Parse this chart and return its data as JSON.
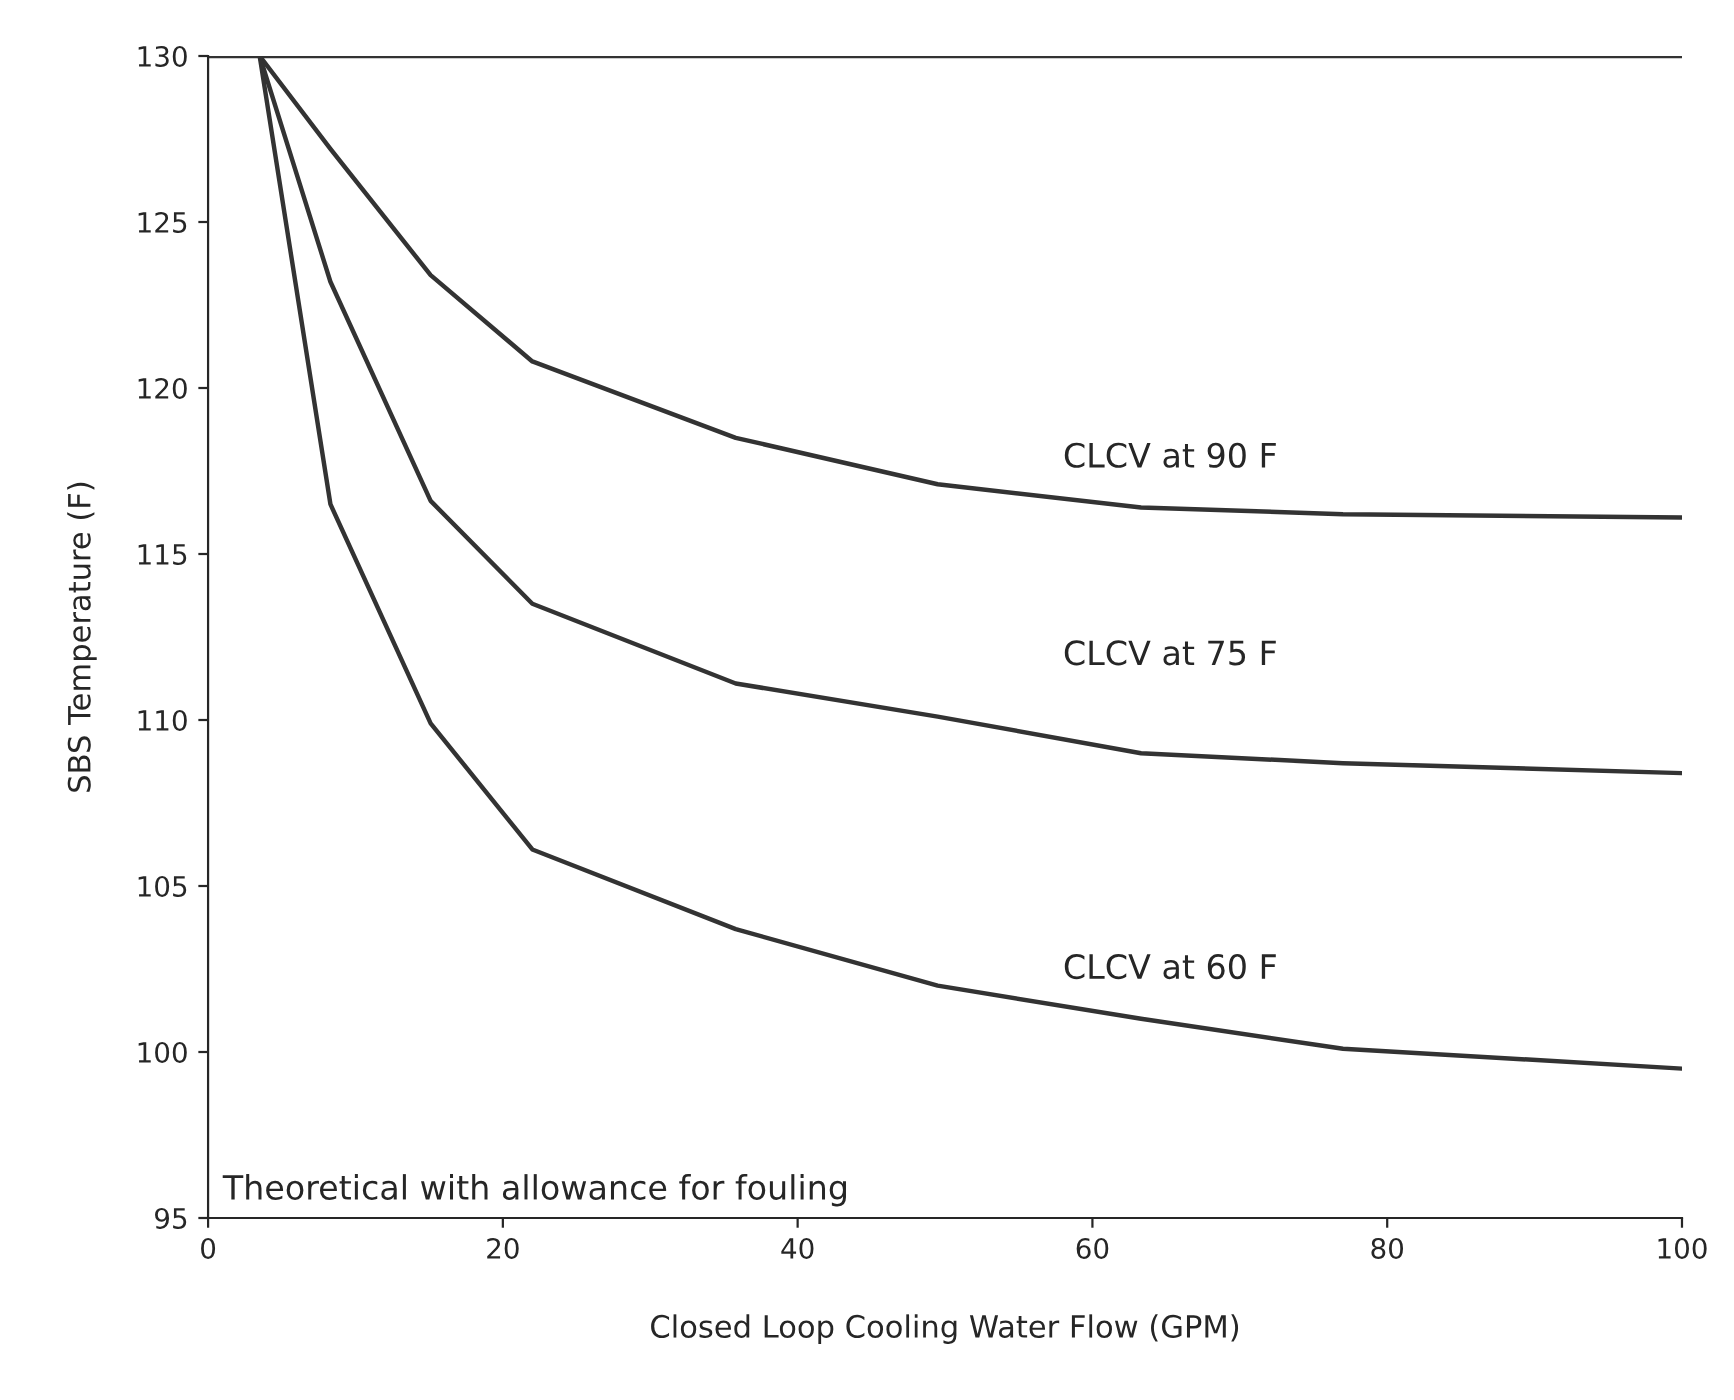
{
  "chart_data": {
    "type": "line",
    "xlabel": "Closed Loop Cooling Water Flow (GPM)",
    "ylabel": "SBS Temperature (F)",
    "xlim": [
      0,
      100
    ],
    "xticks": [
      0,
      20,
      40,
      60,
      80,
      100
    ],
    "ylim": [
      95,
      130
    ],
    "yticks": [
      95,
      100,
      105,
      110,
      115,
      120,
      125,
      130
    ],
    "grid": false,
    "marker": "none",
    "line_style": "solid",
    "series": [
      {
        "color": "#333333",
        "x": [
          0,
          100
        ],
        "values": [
          130,
          130
        ]
      },
      {
        "color": "#333333",
        "x": [
          3.5,
          8.3,
          15.1,
          22,
          35.8,
          49.5,
          63.3,
          77,
          100
        ],
        "values": [
          130,
          127.2,
          123.4,
          120.8,
          118.5,
          117.1,
          116.4,
          116.2,
          116.1
        ]
      },
      {
        "color": "#333333",
        "x": [
          3.5,
          8.3,
          15.1,
          22,
          35.8,
          49.5,
          63.3,
          77,
          100
        ],
        "values": [
          130,
          123.2,
          116.6,
          113.5,
          111.1,
          110.1,
          109.0,
          108.7,
          108.4
        ]
      },
      {
        "color": "#333333",
        "x": [
          3.5,
          8.3,
          15.1,
          22,
          35.8,
          49.5,
          63.3,
          77,
          100
        ],
        "values": [
          130,
          116.5,
          109.9,
          106.1,
          103.7,
          102.0,
          101.0,
          100.1,
          99.5
        ]
      }
    ],
    "annotations": [
      "CLCV at 90 F",
      "CLCV at 75 F",
      "CLCV at 60 F",
      "Theoretical with allowance for fouling"
    ]
  }
}
